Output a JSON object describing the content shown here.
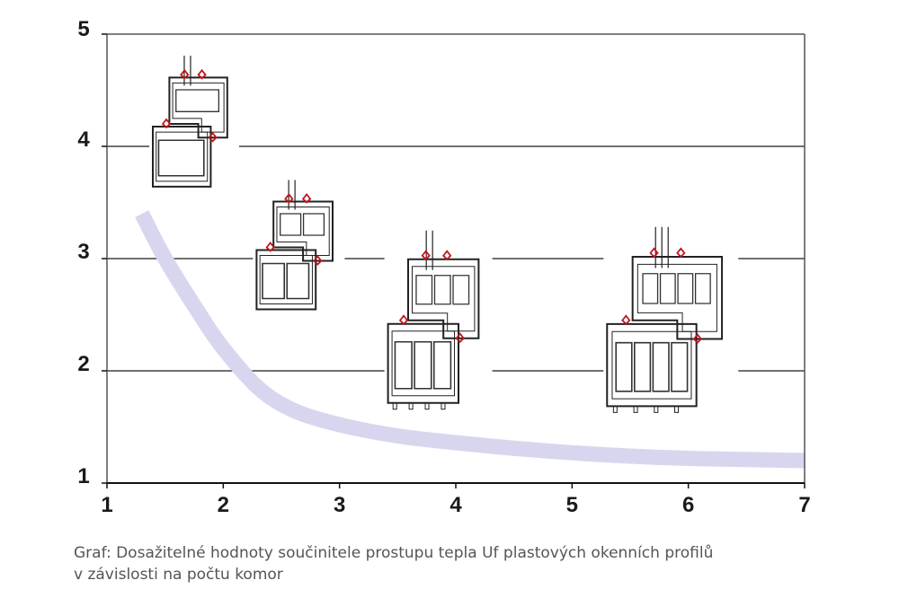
{
  "chart_data": {
    "type": "line",
    "title": "",
    "xlabel": "",
    "ylabel": "",
    "xlim": [
      1,
      7
    ],
    "ylim": [
      1,
      5
    ],
    "x_ticks": [
      "1",
      "2",
      "3",
      "4",
      "5",
      "6",
      "7"
    ],
    "y_ticks": [
      "1",
      "2",
      "3",
      "4",
      "5"
    ],
    "gridlines_y": [
      2,
      3,
      4
    ],
    "grid": "horizontal",
    "legend": "none",
    "series": [
      {
        "x": [
          1.3,
          1.5,
          1.8,
          2.0,
          2.3,
          2.6,
          3.0,
          3.5,
          4.0,
          4.5,
          5.0,
          5.5,
          6.0,
          6.5,
          7.0
        ],
        "y": [
          3.4,
          3.0,
          2.5,
          2.2,
          1.85,
          1.65,
          1.52,
          1.42,
          1.36,
          1.31,
          1.27,
          1.24,
          1.22,
          1.21,
          1.2
        ],
        "color": "#d8d6ef"
      }
    ],
    "illustrations": [
      {
        "name": "window-profile-icon-small",
        "x_center": 1.75,
        "y_center": 4.2
      },
      {
        "name": "window-profile-icon-medium",
        "x_center": 2.65,
        "y_center": 3.1
      },
      {
        "name": "window-profile-icon-large",
        "x_center": 3.85,
        "y_center": 2.45
      },
      {
        "name": "window-profile-icon-xlarge",
        "x_center": 5.85,
        "y_center": 2.45
      }
    ]
  },
  "caption": {
    "line1": "Graf: Dosažitelné hodnoty součinitele prostupu tepla Uf plastových okenních profilů",
    "line2": "v závislosti na počtu komor"
  },
  "colors": {
    "curve": "#d8d6ef",
    "gasket": "#c0141c",
    "axis": "#1a1a1a",
    "grid": "#1a1a1a",
    "caption": "#555555"
  }
}
